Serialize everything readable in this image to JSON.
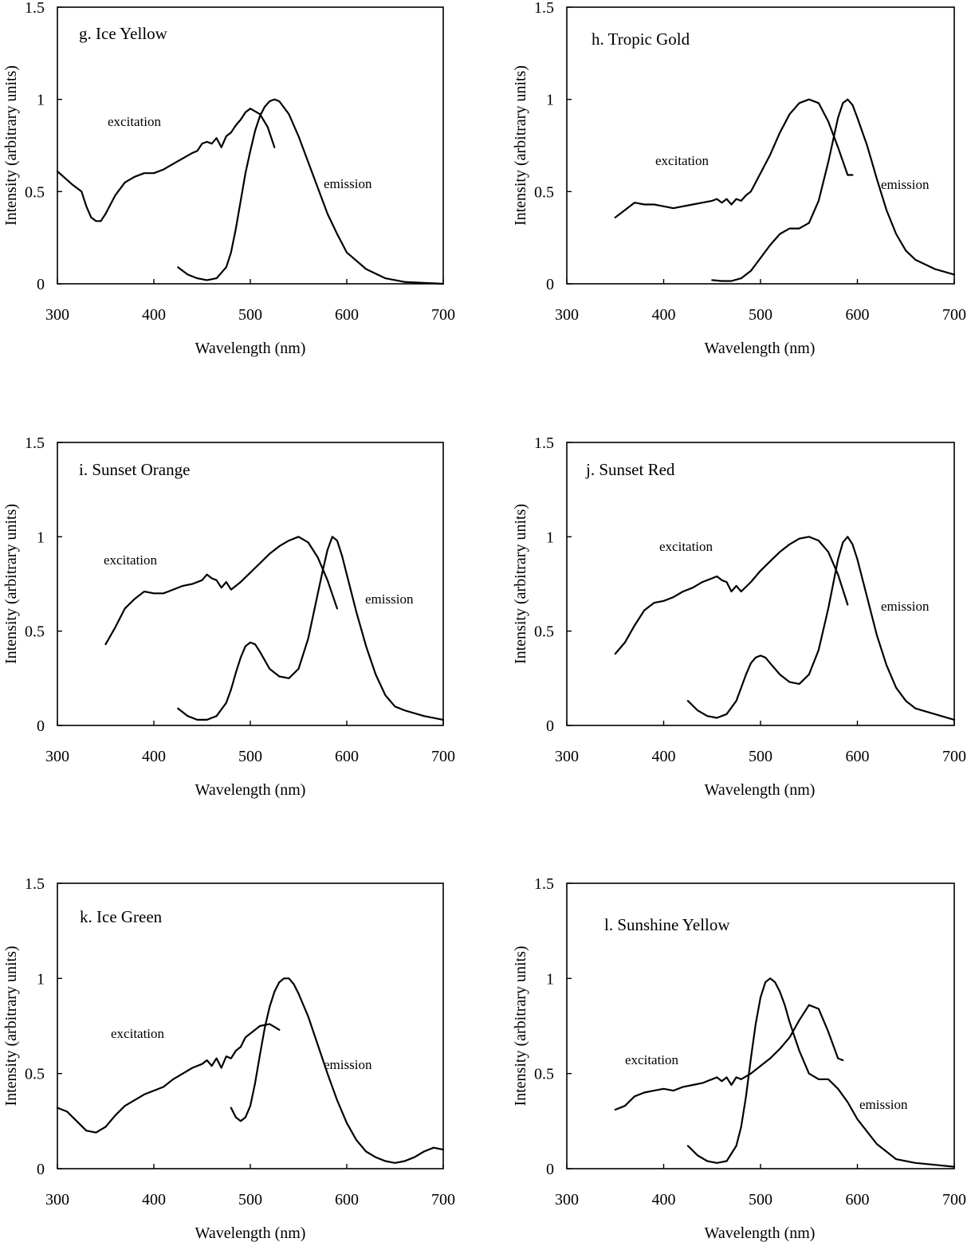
{
  "chart_data": [
    {
      "type": "line",
      "title": "g. Ice Yellow",
      "xlabel": "Wavelength (nm)",
      "ylabel": "Intensity (arbitrary units)",
      "xlim": [
        300,
        700
      ],
      "ylim": [
        0,
        1.5
      ],
      "xticks": [
        "300",
        "400",
        "500",
        "600",
        "700"
      ],
      "yticks": [
        "0",
        "0.5",
        "1",
        "1.5"
      ],
      "grid": false,
      "series": [
        {
          "name": "excitation",
          "x": [
            300,
            315,
            325,
            330,
            335,
            340,
            345,
            350,
            360,
            370,
            380,
            390,
            400,
            410,
            420,
            430,
            440,
            445,
            450,
            455,
            460,
            465,
            470,
            475,
            480,
            485,
            490,
            495,
            500,
            510,
            518,
            525
          ],
          "y": [
            0.61,
            0.54,
            0.5,
            0.42,
            0.36,
            0.34,
            0.34,
            0.38,
            0.48,
            0.55,
            0.58,
            0.6,
            0.6,
            0.62,
            0.65,
            0.68,
            0.71,
            0.72,
            0.76,
            0.77,
            0.76,
            0.79,
            0.74,
            0.8,
            0.82,
            0.86,
            0.89,
            0.93,
            0.95,
            0.92,
            0.85,
            0.74
          ]
        },
        {
          "name": "emission",
          "x": [
            425,
            435,
            445,
            455,
            465,
            475,
            480,
            485,
            490,
            495,
            500,
            505,
            510,
            515,
            520,
            525,
            530,
            540,
            550,
            560,
            570,
            580,
            590,
            600,
            620,
            640,
            660,
            680,
            700
          ],
          "y": [
            0.09,
            0.05,
            0.03,
            0.02,
            0.03,
            0.09,
            0.17,
            0.3,
            0.45,
            0.6,
            0.72,
            0.83,
            0.91,
            0.96,
            0.99,
            1.0,
            0.99,
            0.92,
            0.8,
            0.66,
            0.52,
            0.38,
            0.27,
            0.17,
            0.08,
            0.03,
            0.01,
            0.005,
            0.0
          ]
        }
      ],
      "label_values": {
        "excitation": "excitation",
        "emission": "emission"
      }
    },
    {
      "type": "line",
      "title": "h. Tropic Gold",
      "xlabel": "Wavelength (nm)",
      "ylabel": "Intensity (arbitrary units)",
      "xlim": [
        300,
        700
      ],
      "ylim": [
        0,
        1.5
      ],
      "xticks": [
        "300",
        "400",
        "500",
        "600",
        "700"
      ],
      "yticks": [
        "0",
        "0.5",
        "1",
        "1.5"
      ],
      "grid": false,
      "series": [
        {
          "name": "excitation",
          "x": [
            350,
            360,
            370,
            380,
            390,
            400,
            410,
            420,
            430,
            440,
            450,
            455,
            460,
            465,
            470,
            475,
            480,
            485,
            490,
            500,
            510,
            520,
            530,
            540,
            550,
            560,
            570,
            580,
            590,
            595
          ],
          "y": [
            0.36,
            0.4,
            0.44,
            0.43,
            0.43,
            0.42,
            0.41,
            0.42,
            0.43,
            0.44,
            0.45,
            0.46,
            0.44,
            0.46,
            0.43,
            0.46,
            0.45,
            0.48,
            0.5,
            0.6,
            0.7,
            0.82,
            0.92,
            0.98,
            1.0,
            0.98,
            0.88,
            0.74,
            0.59,
            0.59
          ]
        },
        {
          "name": "emission",
          "x": [
            450,
            460,
            470,
            480,
            490,
            500,
            510,
            520,
            530,
            540,
            550,
            560,
            570,
            580,
            585,
            590,
            595,
            600,
            610,
            620,
            630,
            640,
            650,
            660,
            680,
            700
          ],
          "y": [
            0.02,
            0.015,
            0.015,
            0.03,
            0.07,
            0.14,
            0.21,
            0.27,
            0.3,
            0.3,
            0.33,
            0.45,
            0.66,
            0.9,
            0.98,
            1.0,
            0.97,
            0.9,
            0.75,
            0.57,
            0.4,
            0.27,
            0.18,
            0.13,
            0.08,
            0.05
          ]
        }
      ],
      "label_values": {
        "excitation": "excitation",
        "emission": "emission"
      }
    },
    {
      "type": "line",
      "title": "i. Sunset Orange",
      "xlabel": "Wavelength (nm)",
      "ylabel": "Intensity (arbitrary units)",
      "xlim": [
        300,
        700
      ],
      "ylim": [
        0,
        1.5
      ],
      "xticks": [
        "300",
        "400",
        "500",
        "600",
        "700"
      ],
      "yticks": [
        "0",
        "0.5",
        "1",
        "1.5"
      ],
      "grid": false,
      "series": [
        {
          "name": "excitation",
          "x": [
            350,
            360,
            370,
            380,
            390,
            400,
            410,
            420,
            430,
            440,
            450,
            455,
            460,
            465,
            470,
            475,
            480,
            490,
            500,
            510,
            520,
            530,
            540,
            550,
            560,
            570,
            580,
            590
          ],
          "y": [
            0.43,
            0.52,
            0.62,
            0.67,
            0.71,
            0.7,
            0.7,
            0.72,
            0.74,
            0.75,
            0.77,
            0.8,
            0.78,
            0.77,
            0.73,
            0.76,
            0.72,
            0.76,
            0.81,
            0.86,
            0.91,
            0.95,
            0.98,
            1.0,
            0.97,
            0.89,
            0.77,
            0.62
          ]
        },
        {
          "name": "emission",
          "x": [
            425,
            435,
            445,
            455,
            465,
            475,
            480,
            485,
            490,
            495,
            500,
            505,
            510,
            520,
            530,
            540,
            550,
            560,
            570,
            575,
            580,
            585,
            590,
            595,
            600,
            610,
            620,
            630,
            640,
            650,
            660,
            680,
            700
          ],
          "y": [
            0.09,
            0.05,
            0.03,
            0.03,
            0.05,
            0.12,
            0.19,
            0.28,
            0.36,
            0.42,
            0.44,
            0.43,
            0.39,
            0.3,
            0.26,
            0.25,
            0.3,
            0.46,
            0.7,
            0.82,
            0.93,
            1.0,
            0.98,
            0.9,
            0.8,
            0.6,
            0.42,
            0.27,
            0.16,
            0.1,
            0.08,
            0.05,
            0.03
          ]
        }
      ],
      "label_values": {
        "excitation": "excitation",
        "emission": "emission"
      }
    },
    {
      "type": "line",
      "title": "j. Sunset Red",
      "xlabel": "Wavelength (nm)",
      "ylabel": "Intensity (arbitrary units)",
      "xlim": [
        300,
        700
      ],
      "ylim": [
        0,
        1.5
      ],
      "xticks": [
        "300",
        "400",
        "500",
        "600",
        "700"
      ],
      "yticks": [
        "0",
        "0.5",
        "1",
        "1.5"
      ],
      "grid": false,
      "series": [
        {
          "name": "excitation",
          "x": [
            350,
            360,
            370,
            380,
            390,
            400,
            410,
            420,
            430,
            440,
            450,
            455,
            460,
            465,
            470,
            475,
            480,
            490,
            500,
            510,
            520,
            530,
            540,
            550,
            560,
            570,
            580,
            590
          ],
          "y": [
            0.38,
            0.44,
            0.53,
            0.61,
            0.65,
            0.66,
            0.68,
            0.71,
            0.73,
            0.76,
            0.78,
            0.79,
            0.77,
            0.76,
            0.71,
            0.74,
            0.71,
            0.76,
            0.82,
            0.87,
            0.92,
            0.96,
            0.99,
            1.0,
            0.98,
            0.92,
            0.8,
            0.64
          ]
        },
        {
          "name": "emission",
          "x": [
            425,
            435,
            445,
            455,
            465,
            475,
            480,
            485,
            490,
            495,
            500,
            505,
            510,
            520,
            530,
            540,
            550,
            560,
            570,
            575,
            580,
            585,
            590,
            595,
            600,
            610,
            620,
            630,
            640,
            650,
            660,
            680,
            700
          ],
          "y": [
            0.13,
            0.08,
            0.05,
            0.04,
            0.06,
            0.13,
            0.2,
            0.27,
            0.33,
            0.36,
            0.37,
            0.36,
            0.33,
            0.27,
            0.23,
            0.22,
            0.27,
            0.4,
            0.62,
            0.75,
            0.88,
            0.97,
            1.0,
            0.96,
            0.88,
            0.68,
            0.48,
            0.32,
            0.2,
            0.13,
            0.09,
            0.06,
            0.03
          ]
        }
      ],
      "label_values": {
        "excitation": "excitation",
        "emission": "emission"
      }
    },
    {
      "type": "line",
      "title": "k. Ice Green",
      "xlabel": "Wavelength (nm)",
      "ylabel": "Intensity (arbitrary units)",
      "xlim": [
        300,
        700
      ],
      "ylim": [
        0,
        1.5
      ],
      "xticks": [
        "300",
        "400",
        "500",
        "600",
        "700"
      ],
      "yticks": [
        "0",
        "0.5",
        "1",
        "1.5"
      ],
      "grid": false,
      "series": [
        {
          "name": "excitation",
          "x": [
            300,
            310,
            320,
            330,
            340,
            350,
            360,
            370,
            380,
            390,
            400,
            410,
            420,
            430,
            440,
            450,
            455,
            460,
            465,
            470,
            475,
            480,
            485,
            490,
            495,
            500,
            510,
            520,
            530
          ],
          "y": [
            0.32,
            0.3,
            0.25,
            0.2,
            0.19,
            0.22,
            0.28,
            0.33,
            0.36,
            0.39,
            0.41,
            0.43,
            0.47,
            0.5,
            0.53,
            0.55,
            0.57,
            0.54,
            0.58,
            0.53,
            0.59,
            0.58,
            0.62,
            0.64,
            0.69,
            0.71,
            0.75,
            0.76,
            0.73
          ]
        },
        {
          "name": "emission",
          "x": [
            480,
            485,
            490,
            495,
            500,
            505,
            510,
            515,
            520,
            525,
            530,
            535,
            540,
            545,
            550,
            560,
            570,
            580,
            590,
            600,
            610,
            620,
            630,
            640,
            650,
            660,
            670,
            680,
            690,
            700
          ],
          "y": [
            0.32,
            0.27,
            0.25,
            0.27,
            0.33,
            0.45,
            0.6,
            0.74,
            0.85,
            0.93,
            0.98,
            1.0,
            1.0,
            0.97,
            0.92,
            0.8,
            0.65,
            0.5,
            0.36,
            0.24,
            0.15,
            0.09,
            0.06,
            0.04,
            0.03,
            0.04,
            0.06,
            0.09,
            0.11,
            0.1
          ]
        }
      ],
      "label_values": {
        "excitation": "excitation",
        "emission": "emission"
      }
    },
    {
      "type": "line",
      "title": "l. Sunshine Yellow",
      "xlabel": "Wavelength (nm)",
      "ylabel": "Intensity (arbitrary units)",
      "xlim": [
        300,
        700
      ],
      "ylim": [
        0,
        1.5
      ],
      "xticks": [
        "300",
        "400",
        "500",
        "600",
        "700"
      ],
      "yticks": [
        "0",
        "0.5",
        "1",
        "1.5"
      ],
      "grid": false,
      "series": [
        {
          "name": "excitation",
          "x": [
            350,
            360,
            370,
            380,
            390,
            400,
            410,
            420,
            430,
            440,
            450,
            455,
            460,
            465,
            470,
            475,
            480,
            490,
            500,
            510,
            520,
            530,
            540,
            550,
            560,
            570,
            580,
            585
          ],
          "y": [
            0.31,
            0.33,
            0.38,
            0.4,
            0.41,
            0.42,
            0.41,
            0.43,
            0.44,
            0.45,
            0.47,
            0.48,
            0.46,
            0.48,
            0.44,
            0.48,
            0.47,
            0.5,
            0.54,
            0.58,
            0.63,
            0.69,
            0.78,
            0.86,
            0.84,
            0.72,
            0.58,
            0.57
          ]
        },
        {
          "name": "emission",
          "x": [
            425,
            435,
            445,
            455,
            465,
            475,
            480,
            485,
            490,
            495,
            500,
            505,
            510,
            515,
            520,
            525,
            530,
            540,
            550,
            560,
            570,
            580,
            590,
            600,
            620,
            640,
            660,
            680,
            700
          ],
          "y": [
            0.12,
            0.07,
            0.04,
            0.03,
            0.04,
            0.12,
            0.22,
            0.38,
            0.58,
            0.76,
            0.9,
            0.98,
            1.0,
            0.98,
            0.93,
            0.86,
            0.77,
            0.62,
            0.5,
            0.47,
            0.47,
            0.42,
            0.35,
            0.26,
            0.13,
            0.05,
            0.03,
            0.02,
            0.01
          ]
        }
      ],
      "label_values": {
        "excitation": "excitation",
        "emission": "emission"
      }
    }
  ]
}
